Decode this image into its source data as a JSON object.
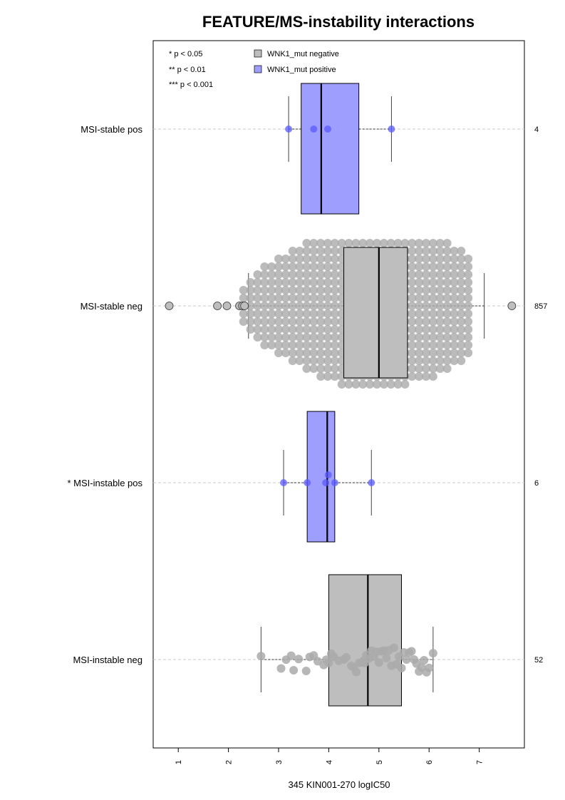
{
  "chart_data": {
    "type": "boxplot",
    "title": "FEATURE/MS-instability interactions",
    "xlabel": "345 KIN001-270 logIC50",
    "ylabel": "",
    "xlim": [
      0.5,
      7.9
    ],
    "xticks": [
      1,
      2,
      3,
      4,
      5,
      6,
      7
    ],
    "grid": "horizontal dashed guide lines",
    "legend_position": "top-left",
    "legend": [
      {
        "label": "WNK1_mut negative",
        "color": "#bebebe"
      },
      {
        "label": "WNK1_mut positive",
        "color": "#9e9eff"
      }
    ],
    "significance_key": [
      "* p < 0.05",
      "** p < 0.01",
      "*** p < 0.001"
    ],
    "colors": {
      "negative_box": "#bebebe",
      "positive_box": "#9e9eff",
      "negative_point": "#aaaaaa",
      "positive_point": "#5a5aff"
    },
    "groups": [
      {
        "label": "MSI-stable pos",
        "count": "4",
        "mutation": "positive",
        "whisker_low": 3.2,
        "q1": 3.45,
        "median": 3.85,
        "q3": 4.6,
        "whisker_high": 5.25,
        "points": [
          3.2,
          3.7,
          3.98,
          5.25
        ]
      },
      {
        "label": "MSI-stable neg",
        "count": "857",
        "mutation": "negative",
        "whisker_low": 2.4,
        "q1": 4.3,
        "median": 5.0,
        "q3": 5.57,
        "whisker_high": 7.1,
        "outliers": [
          0.82,
          1.78,
          1.97,
          2.22,
          2.28,
          2.32,
          7.65
        ],
        "swarm_range": [
          2.3,
          6.9
        ]
      },
      {
        "label": "* MSI-instable pos",
        "count": "6",
        "mutation": "positive",
        "whisker_low": 3.1,
        "q1": 3.57,
        "median": 3.97,
        "q3": 4.12,
        "whisker_high": 4.85,
        "points": [
          3.1,
          3.57,
          3.94,
          3.99,
          4.12,
          4.85
        ]
      },
      {
        "label": "MSI-instable neg",
        "count": "52",
        "mutation": "negative",
        "whisker_low": 2.65,
        "q1": 4.0,
        "median": 4.78,
        "q3": 5.45,
        "whisker_high": 6.08,
        "points": [
          2.65,
          3.05,
          3.15,
          3.25,
          3.3,
          3.4,
          3.55,
          3.62,
          3.7,
          3.78,
          3.9,
          3.95,
          4.0,
          4.05,
          4.1,
          4.2,
          4.3,
          4.35,
          4.45,
          4.5,
          4.55,
          4.6,
          4.65,
          4.7,
          4.72,
          4.75,
          4.8,
          4.85,
          4.9,
          4.95,
          5.0,
          5.05,
          5.1,
          5.15,
          5.2,
          5.25,
          5.3,
          5.35,
          5.4,
          5.45,
          5.5,
          5.55,
          5.6,
          5.65,
          5.7,
          5.75,
          5.8,
          5.85,
          5.9,
          5.95,
          6.0,
          6.08
        ]
      }
    ]
  }
}
